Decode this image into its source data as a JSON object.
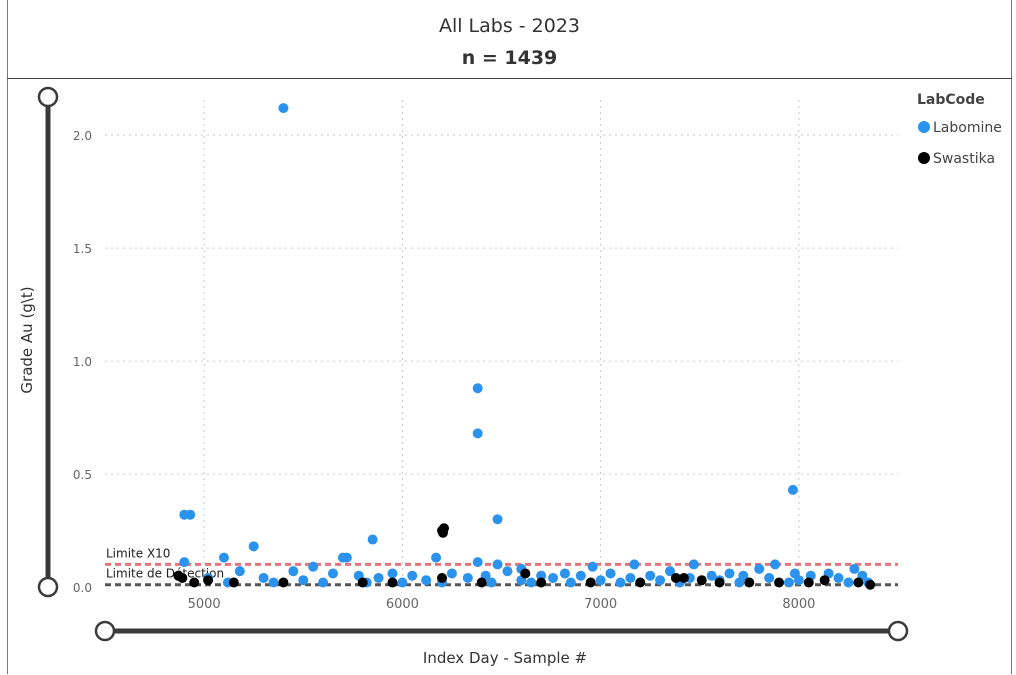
{
  "header": {
    "title": "All Labs - 2023",
    "subtitle": "n = 1439"
  },
  "chart_data": {
    "type": "scatter",
    "xlabel": "Index Day - Sample #",
    "ylabel": "Grade Au (g\\t)",
    "xlim": [
      4500,
      8500
    ],
    "ylim": [
      0,
      2.2
    ],
    "x_ticks": [
      5000,
      6000,
      7000,
      8000
    ],
    "y_ticks": [
      0.0,
      0.5,
      1.0,
      1.5,
      2.0
    ],
    "y_tick_labels": [
      "0.0",
      "0.5",
      "1.0",
      "1.5",
      "2.0"
    ],
    "grid": true,
    "legend": {
      "title": "LabCode",
      "placement": "top-right"
    },
    "reference_lines": [
      {
        "label": "Limite X10",
        "y": 0.1,
        "color": "#e8737a"
      },
      {
        "label": "Limite de Détection",
        "y": 0.01,
        "color": "#555555"
      }
    ],
    "series": [
      {
        "name": "Labomine",
        "color": "#2b93ee",
        "points": [
          [
            5400,
            2.12
          ],
          [
            6380,
            0.88
          ],
          [
            6380,
            0.68
          ],
          [
            7970,
            0.43
          ],
          [
            4900,
            0.32
          ],
          [
            4930,
            0.32
          ],
          [
            6480,
            0.3
          ],
          [
            5850,
            0.21
          ],
          [
            5250,
            0.18
          ],
          [
            5100,
            0.13
          ],
          [
            5700,
            0.13
          ],
          [
            5720,
            0.13
          ],
          [
            6170,
            0.13
          ],
          [
            4900,
            0.11
          ],
          [
            6380,
            0.11
          ],
          [
            6480,
            0.1
          ],
          [
            7170,
            0.1
          ],
          [
            7470,
            0.1
          ],
          [
            7880,
            0.1
          ],
          [
            6960,
            0.09
          ],
          [
            5550,
            0.09
          ],
          [
            6600,
            0.08
          ],
          [
            7800,
            0.08
          ],
          [
            8280,
            0.08
          ],
          [
            5180,
            0.07
          ],
          [
            5450,
            0.07
          ],
          [
            5650,
            0.06
          ],
          [
            5780,
            0.05
          ],
          [
            5950,
            0.06
          ],
          [
            6050,
            0.05
          ],
          [
            6250,
            0.06
          ],
          [
            6420,
            0.05
          ],
          [
            6530,
            0.07
          ],
          [
            6700,
            0.05
          ],
          [
            6820,
            0.06
          ],
          [
            6900,
            0.05
          ],
          [
            7050,
            0.06
          ],
          [
            7250,
            0.05
          ],
          [
            7350,
            0.07
          ],
          [
            7560,
            0.05
          ],
          [
            7650,
            0.06
          ],
          [
            7720,
            0.05
          ],
          [
            7980,
            0.06
          ],
          [
            8060,
            0.05
          ],
          [
            8150,
            0.06
          ],
          [
            8320,
            0.05
          ],
          [
            5020,
            0.04
          ],
          [
            5300,
            0.04
          ],
          [
            5500,
            0.03
          ],
          [
            5880,
            0.04
          ],
          [
            6120,
            0.03
          ],
          [
            6330,
            0.04
          ],
          [
            6600,
            0.03
          ],
          [
            6760,
            0.04
          ],
          [
            7000,
            0.03
          ],
          [
            7150,
            0.04
          ],
          [
            7300,
            0.03
          ],
          [
            7450,
            0.04
          ],
          [
            7600,
            0.03
          ],
          [
            7850,
            0.04
          ],
          [
            8000,
            0.03
          ],
          [
            8200,
            0.04
          ],
          [
            5120,
            0.02
          ],
          [
            5350,
            0.02
          ],
          [
            5600,
            0.02
          ],
          [
            5820,
            0.02
          ],
          [
            6000,
            0.02
          ],
          [
            6200,
            0.02
          ],
          [
            6450,
            0.02
          ],
          [
            6650,
            0.02
          ],
          [
            6850,
            0.02
          ],
          [
            7100,
            0.02
          ],
          [
            7400,
            0.02
          ],
          [
            7700,
            0.02
          ],
          [
            7950,
            0.02
          ],
          [
            8250,
            0.02
          ],
          [
            8350,
            0.02
          ]
        ]
      },
      {
        "name": "Swastika",
        "color": "#000000",
        "points": [
          [
            6210,
            0.26
          ],
          [
            6200,
            0.25
          ],
          [
            6205,
            0.24
          ],
          [
            6620,
            0.06
          ],
          [
            4870,
            0.05
          ],
          [
            4890,
            0.04
          ],
          [
            6200,
            0.04
          ],
          [
            7380,
            0.04
          ],
          [
            7420,
            0.04
          ],
          [
            7510,
            0.03
          ],
          [
            8130,
            0.03
          ],
          [
            5020,
            0.03
          ],
          [
            5800,
            0.02
          ],
          [
            6400,
            0.02
          ],
          [
            6950,
            0.02
          ],
          [
            7600,
            0.02
          ],
          [
            7900,
            0.02
          ],
          [
            8300,
            0.02
          ],
          [
            4950,
            0.02
          ],
          [
            5150,
            0.02
          ],
          [
            5400,
            0.02
          ],
          [
            5950,
            0.02
          ],
          [
            6700,
            0.02
          ],
          [
            7200,
            0.02
          ],
          [
            7750,
            0.02
          ],
          [
            8050,
            0.02
          ],
          [
            8360,
            0.01
          ]
        ]
      }
    ]
  }
}
